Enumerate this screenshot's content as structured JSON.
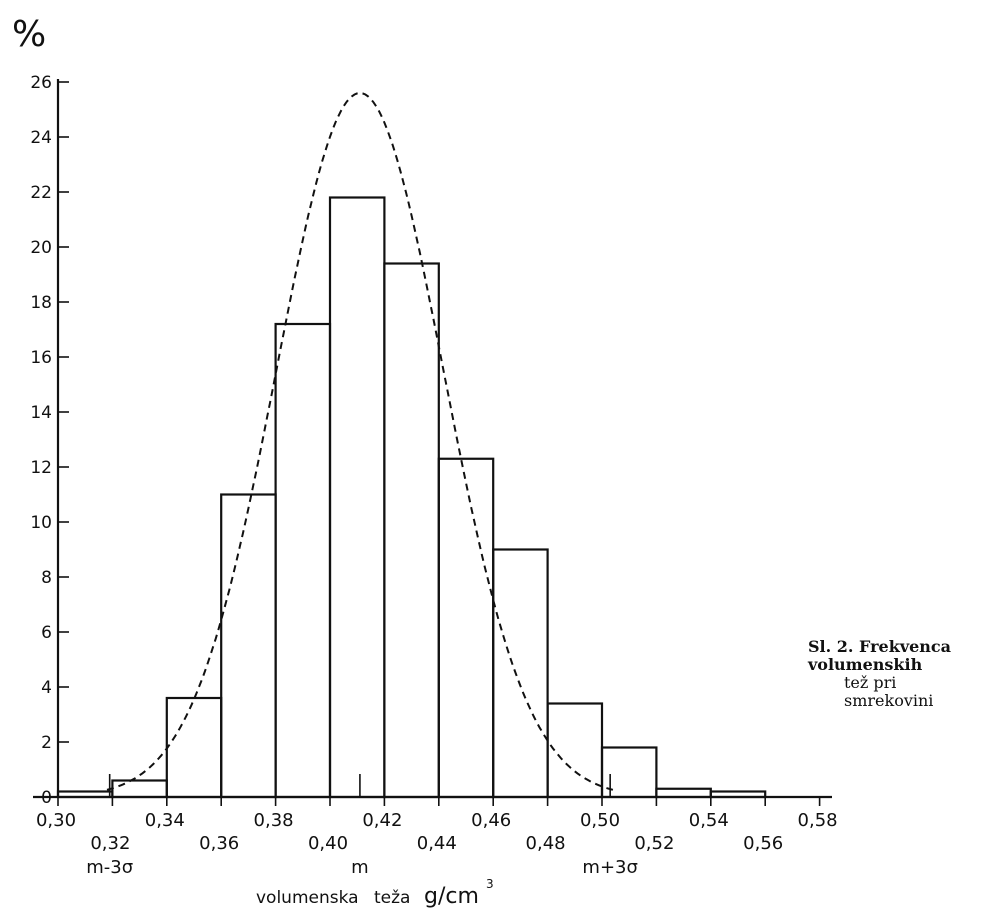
{
  "chart_data": {
    "type": "bar",
    "subtype": "histogram",
    "y_unit_label": "%",
    "xlabel": "volumenska teža",
    "xlabel_unit": "g/cm",
    "xlabel_unit_sup": "3",
    "xlim": [
      0.3,
      0.58
    ],
    "ylim": [
      0,
      26
    ],
    "x_ticks": [
      "0,30",
      "0,32",
      "0,34",
      "0,36",
      "0,38",
      "0,40",
      "0,42",
      "0,44",
      "0,46",
      "0,48",
      "0,50",
      "0,52",
      "0,54",
      "0,56",
      "0,58"
    ],
    "y_ticks": [
      "0",
      "2",
      "4",
      "6",
      "8",
      "10",
      "12",
      "14",
      "16",
      "18",
      "20",
      "22",
      "24",
      "26"
    ],
    "bins": [
      {
        "from": 0.3,
        "to": 0.32,
        "value": 0.2
      },
      {
        "from": 0.32,
        "to": 0.34,
        "value": 0.6
      },
      {
        "from": 0.34,
        "to": 0.36,
        "value": 3.6
      },
      {
        "from": 0.36,
        "to": 0.38,
        "value": 11.0
      },
      {
        "from": 0.38,
        "to": 0.4,
        "value": 17.2
      },
      {
        "from": 0.4,
        "to": 0.42,
        "value": 21.8
      },
      {
        "from": 0.42,
        "to": 0.44,
        "value": 19.4
      },
      {
        "from": 0.44,
        "to": 0.46,
        "value": 12.3
      },
      {
        "from": 0.46,
        "to": 0.48,
        "value": 9.0
      },
      {
        "from": 0.48,
        "to": 0.5,
        "value": 3.4
      },
      {
        "from": 0.5,
        "to": 0.52,
        "value": 1.8
      },
      {
        "from": 0.52,
        "to": 0.54,
        "value": 0.3
      },
      {
        "from": 0.54,
        "to": 0.56,
        "value": 0.2
      }
    ],
    "normal_curve": {
      "mean": 0.411,
      "sigma": 0.0307,
      "peak": 25.6,
      "style": "dashed"
    },
    "markers": [
      {
        "x": 0.319,
        "label": "m-3σ"
      },
      {
        "x": 0.411,
        "label": "m"
      },
      {
        "x": 0.503,
        "label": "m+3σ"
      }
    ],
    "grid": false
  },
  "caption": {
    "line1": "Sl. 2. Frekvenca volumenskih",
    "line2": "tež pri smrekovini"
  }
}
